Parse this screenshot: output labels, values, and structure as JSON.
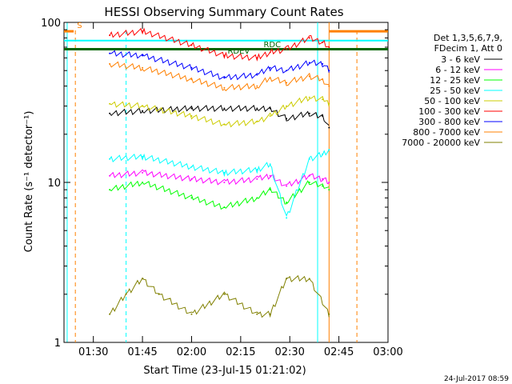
{
  "chart_data": {
    "type": "line",
    "title": "HESSI Observing Summary Count Rates",
    "xlabel": "Start Time (23-Jul-15 01:21:02)",
    "ylabel": "Count Rate (s⁻¹ detector⁻¹)",
    "yscale": "log",
    "xlim": [
      "01:21:02",
      "03:00:00"
    ],
    "ylim": [
      1,
      100
    ],
    "x_ticks": [
      "01:30",
      "01:45",
      "02:00",
      "02:15",
      "02:30",
      "02:45",
      "03:00"
    ],
    "y_ticks": [
      "1",
      "10",
      "100"
    ],
    "legend_header": [
      "Det 1,3,5,6,7,9,",
      "FDecim 1, Att 0"
    ],
    "legend_position": "right",
    "annotations": [
      {
        "text": "S",
        "color": "#ff8000"
      },
      {
        "text": "RDEV",
        "color": "#006400"
      },
      {
        "text": "RDC",
        "color": "#006400"
      }
    ],
    "timestamp": "24-Jul-2017 08:59",
    "series": [
      {
        "name": "3 - 6 keV",
        "color": "#000000",
        "x": [
          "01:35",
          "01:45",
          "02:00",
          "02:10",
          "02:20",
          "02:24",
          "02:29",
          "02:36",
          "02:40",
          "02:42"
        ],
        "y": [
          27,
          28,
          29,
          29,
          29,
          29,
          25,
          27,
          26,
          22
        ]
      },
      {
        "name": "6 - 12 keV",
        "color": "#ff00ff",
        "x": [
          "01:35",
          "01:45",
          "02:00",
          "02:10",
          "02:20",
          "02:24",
          "02:29",
          "02:36",
          "02:40",
          "02:42"
        ],
        "y": [
          11,
          11.5,
          10.5,
          10,
          10.5,
          11,
          9.5,
          11,
          10.5,
          10
        ]
      },
      {
        "name": "12 - 25 keV",
        "color": "#00ff00",
        "x": [
          "01:35",
          "01:45",
          "02:00",
          "02:10",
          "02:20",
          "02:24",
          "02:29",
          "02:36",
          "02:40",
          "02:42"
        ],
        "y": [
          9,
          10,
          8,
          7,
          8,
          9,
          7.5,
          10,
          9.5,
          9
        ]
      },
      {
        "name": "25 - 50 keV",
        "color": "#00ffff",
        "x": [
          "01:35",
          "01:45",
          "02:00",
          "02:10",
          "02:20",
          "02:24",
          "02:29",
          "02:36",
          "02:40",
          "02:42"
        ],
        "y": [
          14,
          14.5,
          12.5,
          11.5,
          12,
          13,
          6,
          14,
          15,
          16
        ]
      },
      {
        "name": "50 - 100 keV",
        "color": "#cccc00",
        "x": [
          "01:35",
          "01:45",
          "02:00",
          "02:10",
          "02:20",
          "02:24",
          "02:29",
          "02:36",
          "02:40",
          "02:42"
        ],
        "y": [
          31,
          30,
          26,
          23,
          24,
          26,
          30,
          34,
          33,
          31
        ]
      },
      {
        "name": "100 - 300 keV",
        "color": "#ff0000",
        "x": [
          "01:35",
          "01:45",
          "02:00",
          "02:10",
          "02:20",
          "02:24",
          "02:29",
          "02:36",
          "02:40",
          "02:42"
        ],
        "y": [
          83,
          88,
          72,
          62,
          60,
          65,
          68,
          80,
          75,
          70
        ]
      },
      {
        "name": "300 - 800 keV",
        "color": "#0000ff",
        "x": [
          "01:35",
          "01:45",
          "02:00",
          "02:10",
          "02:20",
          "02:24",
          "02:29",
          "02:36",
          "02:40",
          "02:42"
        ],
        "y": [
          64,
          62,
          52,
          45,
          47,
          52,
          50,
          56,
          55,
          50
        ]
      },
      {
        "name": "800 - 7000 keV",
        "color": "#ff8000",
        "x": [
          "01:35",
          "01:45",
          "02:00",
          "02:10",
          "02:20",
          "02:24",
          "02:29",
          "02:36",
          "02:40",
          "02:42"
        ],
        "y": [
          55,
          52,
          44,
          39,
          40,
          45,
          42,
          46,
          44,
          40
        ]
      },
      {
        "name": "7000 - 20000 keV",
        "color": "#808000",
        "x": [
          "01:35",
          "01:40",
          "01:45",
          "01:50",
          "02:00",
          "02:10",
          "02:20",
          "02:24",
          "02:29",
          "02:36",
          "02:42"
        ],
        "y": [
          1.5,
          2,
          2.5,
          2,
          1.5,
          2,
          1.5,
          1.5,
          2.5,
          2.5,
          1.5
        ]
      }
    ]
  }
}
